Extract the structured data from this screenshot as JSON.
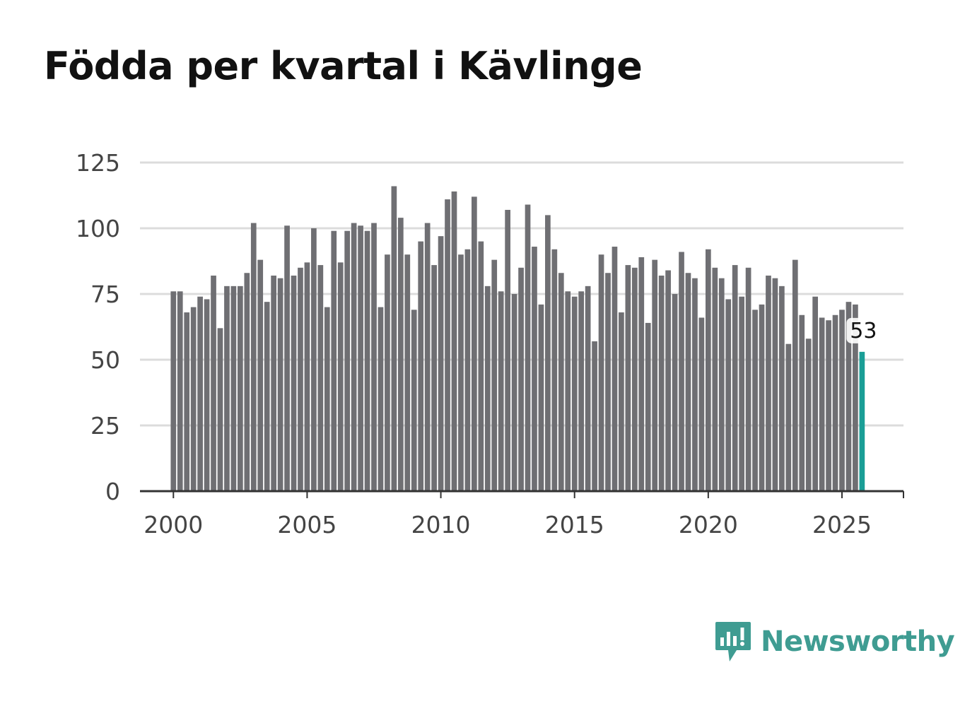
{
  "colors": {
    "bar": "#6f6f73",
    "highlight": "#1a9e96",
    "grid": "#dcdcdc",
    "axis": "#333333",
    "brand": "#3f9c92"
  },
  "brand": {
    "name": "Newsworthy"
  },
  "chart_data": {
    "type": "bar",
    "title": "Födda per kvartal i Kävlinge",
    "xlabel": "",
    "ylabel": "",
    "ylim": [
      0,
      125
    ],
    "yticks": [
      0,
      25,
      50,
      75,
      100,
      125
    ],
    "xticks": [
      2000,
      2005,
      2010,
      2015,
      2020,
      2025
    ],
    "xlim": [
      1998.75,
      2027.3
    ],
    "start_year": 2000,
    "grid": true,
    "highlight_last": true,
    "last_label": "53",
    "values": [
      76,
      76,
      68,
      70,
      74,
      73,
      82,
      62,
      78,
      78,
      78,
      83,
      102,
      88,
      72,
      82,
      81,
      101,
      82,
      85,
      87,
      100,
      86,
      70,
      99,
      87,
      99,
      102,
      101,
      99,
      102,
      70,
      90,
      116,
      104,
      90,
      69,
      95,
      102,
      86,
      97,
      111,
      114,
      90,
      92,
      112,
      95,
      78,
      88,
      76,
      107,
      75,
      85,
      109,
      93,
      71,
      105,
      92,
      83,
      76,
      74,
      76,
      78,
      57,
      90,
      83,
      93,
      68,
      86,
      85,
      89,
      64,
      88,
      82,
      84,
      75,
      91,
      83,
      81,
      66,
      92,
      85,
      81,
      73,
      86,
      74,
      85,
      69,
      71,
      82,
      81,
      78,
      56,
      88,
      67,
      58,
      74,
      66,
      65,
      67,
      69,
      72,
      71,
      53
    ]
  }
}
